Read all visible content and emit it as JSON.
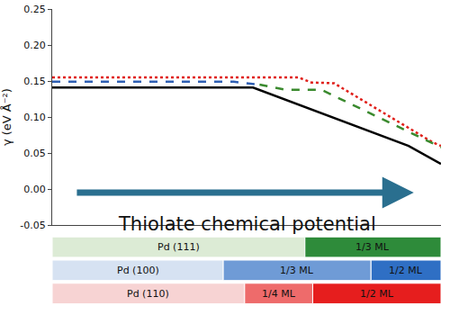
{
  "chart_data": {
    "type": "line",
    "ylabel": "γ (eV Å⁻²)",
    "xlabel": "Thiolate chemical potential",
    "xlim": [
      -5,
      1
    ],
    "ylim": [
      -0.05,
      0.25
    ],
    "yticks": [
      {
        "value": -0.05,
        "label": "-0.05"
      },
      {
        "value": 0,
        "label": "0.00"
      },
      0.05,
      {
        "value": 0.1,
        "label": "0.10"
      },
      0.15,
      {
        "value": 0.2,
        "label": "0.20"
      },
      0.25
    ],
    "tick_labels": "y",
    "grid": false,
    "series": [
      {
        "color": "#e0201b",
        "line_style": "dot",
        "x": [
          -5,
          -1.2,
          -1.0,
          -0.65,
          0.87,
          1
        ],
        "values": [
          0.155,
          0.155,
          0.148,
          0.147,
          0.065,
          0.06
        ]
      },
      {
        "color": "#2f5fb3",
        "line_style": "dash",
        "x": [
          -5,
          -2.2,
          -1.8
        ],
        "values": [
          0.149,
          0.149,
          0.145
        ]
      },
      {
        "color": "#3a8a2e",
        "line_style": "dash",
        "x": [
          -1.8,
          -1.4,
          -0.85,
          1
        ],
        "values": [
          0.145,
          0.138,
          0.138,
          0.058
        ]
      },
      {
        "color": "#000000",
        "line_style": "solid",
        "x": [
          -5,
          -1.9,
          0.5,
          1
        ],
        "values": [
          0.141,
          0.141,
          0.06,
          0.035
        ]
      }
    ],
    "phases": [
      {
        "segments": [
          {
            "label": "Pd (111)",
            "start": -5,
            "end": -1.1,
            "color": "#dcebd5"
          },
          {
            "label": "1/3 ML",
            "start": -1.1,
            "end": 1,
            "color": "#2e8b3a"
          }
        ]
      },
      {
        "segments": [
          {
            "label": "Pd (100)",
            "start": -5,
            "end": -2.36,
            "color": "#d6e2f2"
          },
          {
            "label": "1/3 ML",
            "start": -2.36,
            "end": -0.08,
            "color": "#6f9bd6"
          },
          {
            "label": "1/2 ML",
            "start": -0.08,
            "end": 1,
            "color": "#2f6fc4"
          }
        ]
      },
      {
        "segments": [
          {
            "label": "Pd (110)",
            "start": -5,
            "end": -2.03,
            "color": "#f7d3d3"
          },
          {
            "label": "1/4 ML",
            "start": -2.03,
            "end": -0.98,
            "color": "#ee6b6b"
          },
          {
            "label": "1/2 ML",
            "start": -0.98,
            "end": 1,
            "color": "#e61e1e"
          }
        ]
      }
    ]
  }
}
